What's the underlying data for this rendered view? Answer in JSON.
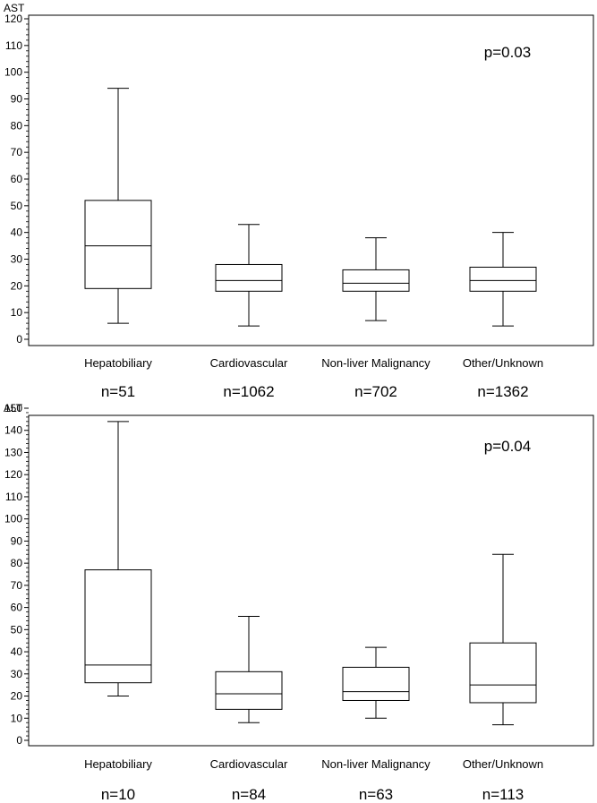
{
  "chart_data": [
    {
      "type": "box",
      "ylabel": "AST",
      "ylim": [
        0,
        120
      ],
      "yticks": [
        0,
        10,
        20,
        30,
        40,
        50,
        60,
        70,
        80,
        90,
        100,
        110,
        120
      ],
      "annotation": "p=0.03",
      "categories": [
        "Hepatobiliary",
        "Cardiovascular",
        "Non-liver Malignancy",
        "Other/Unknown"
      ],
      "counts": [
        "n=51",
        "n=1062",
        "n=702",
        "n=1362"
      ],
      "boxes": [
        {
          "whisker_low": 6,
          "q1": 19,
          "median": 35,
          "q3": 52,
          "whisker_high": 94
        },
        {
          "whisker_low": 5,
          "q1": 18,
          "median": 22,
          "q3": 28,
          "whisker_high": 43
        },
        {
          "whisker_low": 7,
          "q1": 18,
          "median": 21,
          "q3": 26,
          "whisker_high": 38
        },
        {
          "whisker_low": 5,
          "q1": 18,
          "median": 22,
          "q3": 27,
          "whisker_high": 40
        }
      ]
    },
    {
      "type": "box",
      "ylabel": "ALT",
      "ylim": [
        0,
        150
      ],
      "yticks": [
        0,
        10,
        20,
        30,
        40,
        50,
        60,
        70,
        80,
        90,
        100,
        110,
        120,
        130,
        140,
        150
      ],
      "annotation": "p=0.04",
      "categories": [
        "Hepatobiliary",
        "Cardiovascular",
        "Non-liver Malignancy",
        "Other/Unknown"
      ],
      "counts": [
        "n=10",
        "n=84",
        "n=63",
        "n=113"
      ],
      "boxes": [
        {
          "whisker_low": 20,
          "q1": 26,
          "median": 34,
          "q3": 77,
          "whisker_high": 144
        },
        {
          "whisker_low": 8,
          "q1": 14,
          "median": 21,
          "q3": 31,
          "whisker_high": 56
        },
        {
          "whisker_low": 10,
          "q1": 18,
          "median": 22,
          "q3": 33,
          "whisker_high": 42
        },
        {
          "whisker_low": 7,
          "q1": 17,
          "median": 25,
          "q3": 44,
          "whisker_high": 84
        }
      ]
    }
  ]
}
